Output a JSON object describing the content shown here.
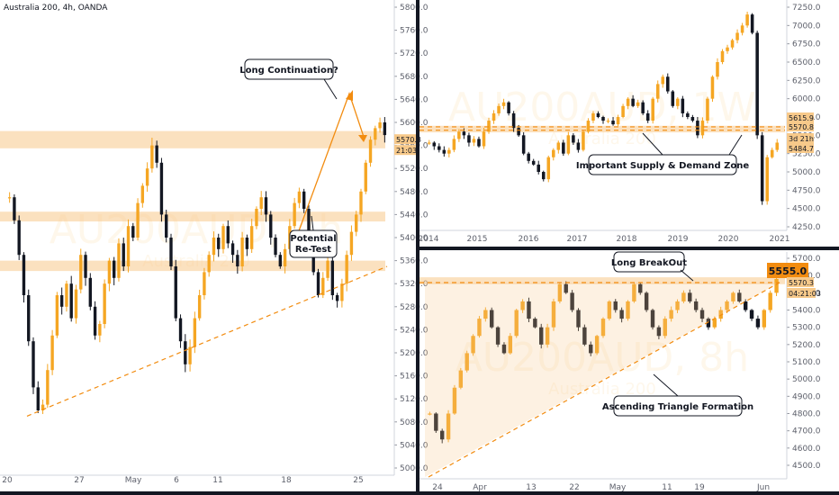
{
  "colors": {
    "candle_up": "#f5a623",
    "candle_down": "#131722",
    "zone": "#f7c98a",
    "dashed": "#f28c10",
    "divider": "#131722"
  },
  "chart_data": [
    {
      "id": "left",
      "type": "candlestick",
      "header": "Australia 200, 4h, OANDA",
      "watermark_symbol": "AU200AUD, 4h",
      "watermark_name": "Australia 200",
      "y_ticks": [
        "5800.0",
        "5760.0",
        "5720.0",
        "5680.0",
        "5640.0",
        "5600.0",
        "5560.0",
        "5520.0",
        "5480.0",
        "5440.0",
        "5400.0",
        "5360.0",
        "5320.0",
        "5280.0",
        "5240.0",
        "5200.0",
        "5160.0",
        "5120.0",
        "5080.0",
        "5040.0",
        "5000.0"
      ],
      "x_ticks": [
        "20",
        "27",
        "May",
        "6",
        "11",
        "18",
        "25"
      ],
      "price_tag": "5570.3",
      "time_tag": "21:03",
      "ylim": [
        4985,
        5812
      ],
      "zones": [
        [
          5555,
          5585
        ],
        [
          5428,
          5445
        ],
        [
          5342,
          5360
        ]
      ],
      "trendline": [
        [
          0,
          5090
        ],
        [
          430,
          5350
        ]
      ],
      "close_series": [
        5470,
        5430,
        5370,
        5300,
        5220,
        5140,
        5100,
        5110,
        5170,
        5230,
        5300,
        5280,
        5320,
        5260,
        5310,
        5370,
        5330,
        5280,
        5230,
        5250,
        5320,
        5360,
        5330,
        5390,
        5350,
        5420,
        5400,
        5460,
        5490,
        5520,
        5560,
        5530,
        5440,
        5400,
        5350,
        5260,
        5220,
        5180,
        5210,
        5260,
        5300,
        5340,
        5370,
        5400,
        5380,
        5420,
        5390,
        5370,
        5350,
        5400,
        5380,
        5420,
        5450,
        5470,
        5440,
        5400,
        5370,
        5350,
        5380,
        5420,
        5460,
        5480,
        5450,
        5400,
        5340,
        5300,
        5330,
        5360,
        5300,
        5290,
        5320,
        5370,
        5410,
        5440,
        5480,
        5530,
        5570,
        5590,
        5600,
        5578
      ],
      "annotations": [
        "Long Continuation?",
        "Potential",
        "Re-Test"
      ]
    },
    {
      "id": "top-right",
      "type": "candlestick",
      "watermark_symbol": "AU200AUD, 1W",
      "watermark_name": "Australia 200",
      "y_ticks": [
        "7250.0",
        "7000.0",
        "6750.0",
        "6500.0",
        "6250.0",
        "6000.0",
        "5750.0",
        "5500.0",
        "5250.0",
        "5000.0",
        "4750.0",
        "4500.0",
        "4250.0"
      ],
      "x_ticks": [
        "2014",
        "2015",
        "2016",
        "2017",
        "2018",
        "2019",
        "2020",
        "2021"
      ],
      "price_tags": [
        "5615.9",
        "5570.8",
        "3d 21h",
        "5484.7"
      ],
      "ylim": [
        4150,
        7320
      ],
      "zones": [
        [
          5540,
          5630
        ]
      ],
      "close_series": [
        5400,
        5350,
        5300,
        5250,
        5300,
        5450,
        5550,
        5500,
        5400,
        5450,
        5350,
        5550,
        5700,
        5800,
        5900,
        5950,
        5800,
        5600,
        5500,
        5250,
        5150,
        5100,
        5000,
        4900,
        5200,
        5300,
        5400,
        5250,
        5500,
        5400,
        5300,
        5550,
        5700,
        5800,
        5750,
        5700,
        5700,
        5650,
        5750,
        5900,
        6000,
        5900,
        5950,
        5800,
        5700,
        6000,
        6200,
        6300,
        6100,
        5900,
        6000,
        5800,
        5750,
        5700,
        5500,
        5700,
        6000,
        6300,
        6500,
        6650,
        6700,
        6800,
        6900,
        7000,
        7150,
        6900,
        5500,
        4600,
        5200,
        5300,
        5400
      ],
      "annotations": [
        "Important Supply & Demand Zone"
      ]
    },
    {
      "id": "bottom-right",
      "type": "candlestick",
      "watermark_symbol": "AU200AUD, 8h",
      "watermark_name": "Australia 200",
      "y_ticks": [
        "5700.0",
        "5600.0",
        "5500.0",
        "5400.0",
        "5300.0",
        "5200.0",
        "5100.0",
        "5000.0",
        "4900.0",
        "4800.0",
        "4700.0",
        "4600.0",
        "4500.0"
      ],
      "x_ticks": [
        "24",
        "Apr",
        "13",
        "22",
        "May",
        "11",
        "19",
        "Jun"
      ],
      "price_tags": [
        "5570.3",
        "04:21:03"
      ],
      "level_tag": "5555.0",
      "ylim": [
        4420,
        5760
      ],
      "zones": [
        [
          5550,
          5590
        ]
      ],
      "close_series": [
        4800,
        4700,
        4650,
        4800,
        4950,
        5050,
        5150,
        5250,
        5350,
        5400,
        5300,
        5200,
        5150,
        5250,
        5400,
        5450,
        5350,
        5300,
        5200,
        5300,
        5450,
        5550,
        5500,
        5400,
        5300,
        5200,
        5150,
        5250,
        5350,
        5450,
        5400,
        5350,
        5450,
        5550,
        5500,
        5400,
        5300,
        5250,
        5350,
        5400,
        5450,
        5500,
        5450,
        5400,
        5350,
        5300,
        5350,
        5400,
        5450,
        5500,
        5450,
        5400,
        5350,
        5300,
        5400,
        5500,
        5580
      ],
      "annotations": [
        "Long BreakOut",
        "Ascending Triangle Formation"
      ]
    }
  ]
}
